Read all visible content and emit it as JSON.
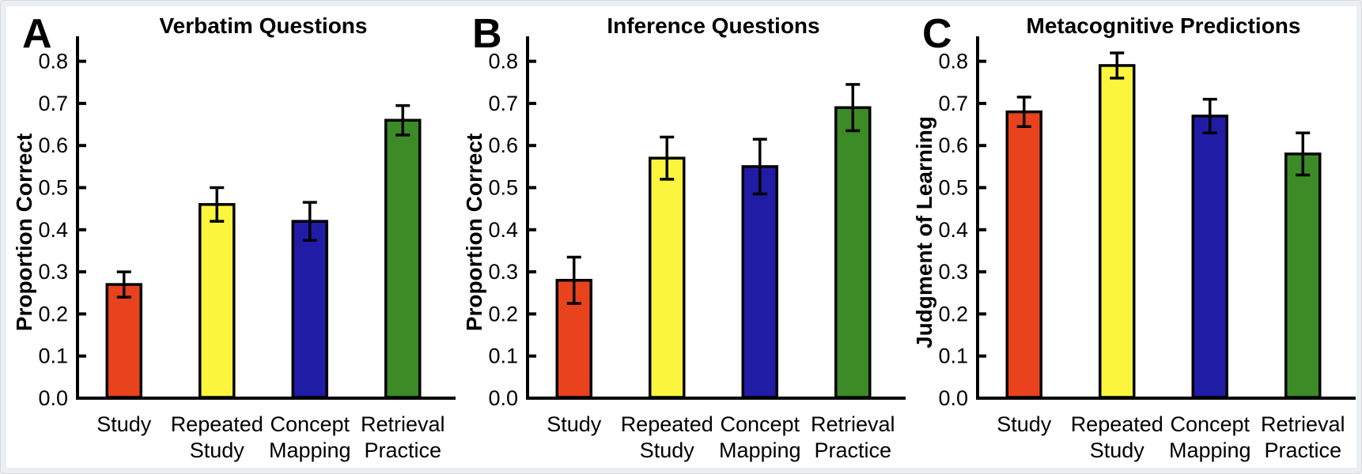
{
  "figure": {
    "background": "#eceff1",
    "canvas_background": "#ffffff",
    "axis_color": "#000000",
    "error_bar_color": "#000000",
    "bar_outline_color": "#000000"
  },
  "chart_data": [
    {
      "type": "bar",
      "panel_letter": "A",
      "title": "Verbatim Questions",
      "xlabel": "",
      "ylabel": "Proportion Correct",
      "categories": [
        "Study",
        "Repeated Study",
        "Concept Mapping",
        "Retrieval Practice"
      ],
      "category_lines": [
        [
          "Study"
        ],
        [
          "Repeated",
          "Study"
        ],
        [
          "Concept",
          "Mapping"
        ],
        [
          "Retrieval",
          "Practice"
        ]
      ],
      "values": [
        0.27,
        0.46,
        0.42,
        0.66
      ],
      "errors": [
        0.03,
        0.04,
        0.045,
        0.035
      ],
      "bar_colors": [
        "#e8431d",
        "#fbf53d",
        "#211ca6",
        "#3c8b26"
      ],
      "ylim": [
        0.0,
        0.86
      ],
      "yticks": [
        0.0,
        0.1,
        0.2,
        0.3,
        0.4,
        0.5,
        0.6,
        0.7,
        0.8
      ],
      "grid": false,
      "legend": "none"
    },
    {
      "type": "bar",
      "panel_letter": "B",
      "title": "Inference Questions",
      "xlabel": "",
      "ylabel": "Proportion Correct",
      "categories": [
        "Study",
        "Repeated Study",
        "Concept Mapping",
        "Retrieval Practice"
      ],
      "category_lines": [
        [
          "Study"
        ],
        [
          "Repeated",
          "Study"
        ],
        [
          "Concept",
          "Mapping"
        ],
        [
          "Retrieval",
          "Practice"
        ]
      ],
      "values": [
        0.28,
        0.57,
        0.55,
        0.69
      ],
      "errors": [
        0.055,
        0.05,
        0.065,
        0.055
      ],
      "bar_colors": [
        "#e8431d",
        "#fbf53d",
        "#211ca6",
        "#3c8b26"
      ],
      "ylim": [
        0.0,
        0.86
      ],
      "yticks": [
        0.0,
        0.1,
        0.2,
        0.3,
        0.4,
        0.5,
        0.6,
        0.7,
        0.8
      ],
      "grid": false,
      "legend": "none"
    },
    {
      "type": "bar",
      "panel_letter": "C",
      "title": "Metacognitive Predictions",
      "xlabel": "",
      "ylabel": "Judgment of Learning",
      "categories": [
        "Study",
        "Repeated Study",
        "Concept Mapping",
        "Retrieval Practice"
      ],
      "category_lines": [
        [
          "Study"
        ],
        [
          "Repeated",
          "Study"
        ],
        [
          "Concept",
          "Mapping"
        ],
        [
          "Retrieval",
          "Practice"
        ]
      ],
      "values": [
        0.68,
        0.79,
        0.67,
        0.58
      ],
      "errors": [
        0.035,
        0.03,
        0.04,
        0.05
      ],
      "bar_colors": [
        "#e8431d",
        "#fbf53d",
        "#211ca6",
        "#3c8b26"
      ],
      "ylim": [
        0.0,
        0.86
      ],
      "yticks": [
        0.0,
        0.1,
        0.2,
        0.3,
        0.4,
        0.5,
        0.6,
        0.7,
        0.8
      ],
      "grid": false,
      "legend": "none"
    }
  ]
}
